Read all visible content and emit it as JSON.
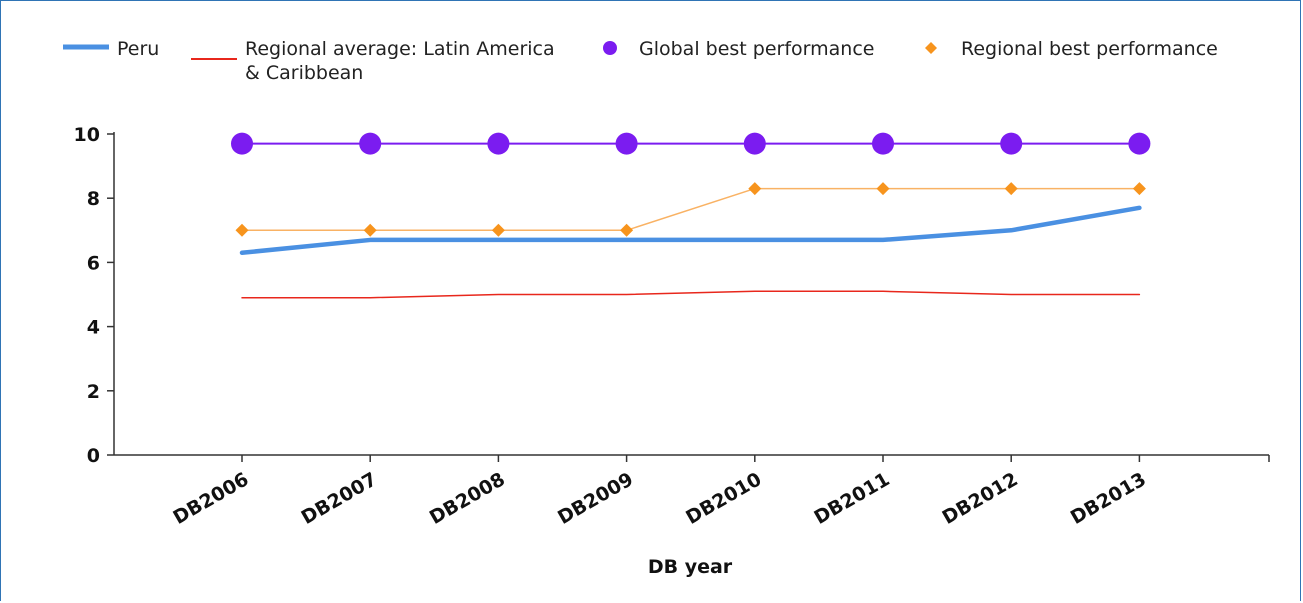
{
  "chart_data": {
    "type": "line",
    "xlabel": "DB year",
    "ylabel": "",
    "ylim": [
      0,
      10
    ],
    "yticks": [
      0,
      2,
      4,
      6,
      8,
      10
    ],
    "categories": [
      "DB2006",
      "DB2007",
      "DB2008",
      "DB2009",
      "DB2010",
      "DB2011",
      "DB2012",
      "DB2013"
    ],
    "legend_position": "top",
    "series": [
      {
        "name": "Peru",
        "values": [
          6.3,
          6.7,
          6.7,
          6.7,
          6.7,
          6.7,
          7.0,
          7.7
        ],
        "color": "#4a90e2",
        "style": "thick-line"
      },
      {
        "name": "Regional average: Latin America & Caribbean",
        "values": [
          4.9,
          4.9,
          5.0,
          5.0,
          5.1,
          5.1,
          5.0,
          5.0
        ],
        "color": "#e8271c",
        "style": "thin-line"
      },
      {
        "name": "Global best performance",
        "values": [
          9.7,
          9.7,
          9.7,
          9.7,
          9.7,
          9.7,
          9.7,
          9.7
        ],
        "color": "#7b1cf0",
        "style": "circle-markers"
      },
      {
        "name": "Regional best performance",
        "values": [
          7.0,
          7.0,
          7.0,
          7.0,
          8.3,
          8.3,
          8.3,
          8.3
        ],
        "color": "#f7941d",
        "style": "diamond-markers"
      }
    ]
  }
}
